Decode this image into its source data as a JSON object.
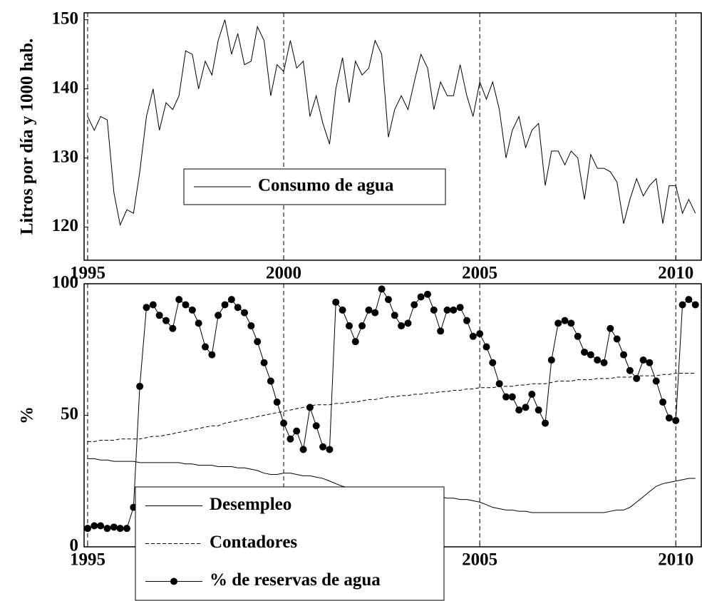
{
  "chart_data": [
    {
      "type": "line",
      "ylabel": "Litros por día y 1000 hab.",
      "legend": "center",
      "xlim": [
        1994.91,
        2010.65
      ],
      "xticks": [
        1995,
        2000,
        2005,
        2010
      ],
      "grid": "x-dashed",
      "ylim": [
        115.2,
        151
      ],
      "yticks": [
        120,
        130,
        140,
        150
      ],
      "x": [
        1995,
        1995.17,
        1995.33,
        1995.5,
        1995.67,
        1995.83,
        1996,
        1996.17,
        1996.33,
        1996.5,
        1996.67,
        1996.83,
        1997,
        1997.17,
        1997.33,
        1997.5,
        1997.67,
        1997.83,
        1998,
        1998.17,
        1998.33,
        1998.5,
        1998.67,
        1998.83,
        1999,
        1999.17,
        1999.33,
        1999.5,
        1999.67,
        1999.83,
        2000,
        2000.17,
        2000.33,
        2000.5,
        2000.67,
        2000.83,
        2001,
        2001.17,
        2001.33,
        2001.5,
        2001.67,
        2001.83,
        2002,
        2002.17,
        2002.33,
        2002.5,
        2002.67,
        2002.83,
        2003,
        2003.17,
        2003.33,
        2003.5,
        2003.67,
        2003.83,
        2004,
        2004.17,
        2004.33,
        2004.5,
        2004.67,
        2004.83,
        2005,
        2005.17,
        2005.33,
        2005.5,
        2005.67,
        2005.83,
        2006,
        2006.17,
        2006.33,
        2006.5,
        2006.67,
        2006.83,
        2007,
        2007.17,
        2007.33,
        2007.5,
        2007.67,
        2007.83,
        2008,
        2008.17,
        2008.33,
        2008.5,
        2008.67,
        2008.83,
        2009,
        2009.17,
        2009.33,
        2009.5,
        2009.67,
        2009.83,
        2010,
        2010.17,
        2010.33,
        2010.5
      ],
      "series": [
        {
          "name": "Consumo de agua",
          "color": "#000000",
          "style": "solid",
          "values": [
            136,
            134,
            136,
            135.5,
            125,
            120.3,
            122.5,
            122,
            128,
            136,
            140,
            134,
            138,
            137,
            139,
            145.5,
            145,
            140,
            144,
            142,
            147,
            150,
            145,
            148,
            143.5,
            144,
            149,
            147,
            139,
            143.5,
            142.5,
            147,
            143,
            144,
            136,
            139,
            135,
            132,
            140,
            144.5,
            138,
            144,
            142,
            143,
            147,
            145,
            133,
            137,
            139,
            137,
            141,
            145,
            143,
            137,
            141,
            139,
            139,
            143.5,
            139,
            136,
            141,
            138.5,
            141,
            137,
            130,
            134,
            136,
            131.5,
            134,
            135,
            126,
            131,
            131,
            129,
            131,
            130,
            124,
            130.5,
            128.5,
            128.5,
            128,
            126.5,
            120.5,
            124,
            127,
            124.5,
            126,
            127,
            120.5,
            126,
            126,
            122,
            124,
            122
          ]
        }
      ]
    },
    {
      "type": "line",
      "ylabel": "%",
      "legend": "lower left",
      "xlim": [
        1994.91,
        2010.65
      ],
      "xticks": [
        1995,
        2000,
        2005,
        2010
      ],
      "grid": "x-dashed",
      "ylim": [
        0,
        100
      ],
      "yticks": [
        0,
        50,
        100
      ],
      "x": [
        1995,
        1995.17,
        1995.33,
        1995.5,
        1995.67,
        1995.83,
        1996,
        1996.17,
        1996.33,
        1996.5,
        1996.67,
        1996.83,
        1997,
        1997.17,
        1997.33,
        1997.5,
        1997.67,
        1997.83,
        1998,
        1998.17,
        1998.33,
        1998.5,
        1998.67,
        1998.83,
        1999,
        1999.17,
        1999.33,
        1999.5,
        1999.67,
        1999.83,
        2000,
        2000.17,
        2000.33,
        2000.5,
        2000.67,
        2000.83,
        2001,
        2001.17,
        2001.33,
        2001.5,
        2001.67,
        2001.83,
        2002,
        2002.17,
        2002.33,
        2002.5,
        2002.67,
        2002.83,
        2003,
        2003.17,
        2003.33,
        2003.5,
        2003.67,
        2003.83,
        2004,
        2004.17,
        2004.33,
        2004.5,
        2004.67,
        2004.83,
        2005,
        2005.17,
        2005.33,
        2005.5,
        2005.67,
        2005.83,
        2006,
        2006.17,
        2006.33,
        2006.5,
        2006.67,
        2006.83,
        2007,
        2007.17,
        2007.33,
        2007.5,
        2007.67,
        2007.83,
        2008,
        2008.17,
        2008.33,
        2008.5,
        2008.67,
        2008.83,
        2009,
        2009.17,
        2009.33,
        2009.5,
        2009.67,
        2009.83,
        2010,
        2010.17,
        2010.33,
        2010.5
      ],
      "series": [
        {
          "name": "Desempleo",
          "color": "#000000",
          "style": "solid",
          "values": [
            33.5,
            33.5,
            33,
            33,
            32.5,
            32.5,
            32.5,
            32.5,
            32,
            32,
            32,
            32,
            32,
            32,
            32,
            31.5,
            31.5,
            31,
            31,
            31,
            30.5,
            30.5,
            30.5,
            30,
            30,
            29.5,
            29,
            28,
            27.5,
            27.5,
            28,
            28,
            27.5,
            27,
            27,
            26.5,
            26,
            25,
            24,
            23,
            22.5,
            22,
            21.5,
            21,
            21,
            20.5,
            20.5,
            20,
            20,
            20,
            20,
            19.5,
            19,
            19,
            19,
            18.5,
            18.5,
            18,
            18,
            17.5,
            17,
            16,
            15,
            14.5,
            14,
            14,
            13.5,
            13.5,
            13,
            13,
            13,
            13,
            13,
            13,
            13,
            13,
            13,
            13,
            13,
            13,
            13.5,
            14,
            14,
            15,
            17,
            19,
            21,
            23,
            24,
            24.5,
            25,
            25.5,
            26,
            26
          ]
        },
        {
          "name": "Contadores",
          "color": "#000000",
          "style": "dashed",
          "values": [
            40,
            40,
            40.5,
            40.5,
            40.5,
            41,
            41,
            41,
            41,
            41.5,
            42,
            42,
            42.5,
            43,
            43.5,
            44,
            44.5,
            45,
            45.5,
            46,
            46,
            47,
            47.5,
            48,
            48.5,
            49,
            49.5,
            50,
            50.5,
            51,
            51.5,
            52,
            52.5,
            53,
            53.5,
            54,
            54,
            54,
            54.5,
            54.5,
            55,
            55,
            55.5,
            56,
            56,
            56.5,
            57,
            57,
            57.5,
            57.5,
            58,
            58,
            58.5,
            58.5,
            59,
            59,
            59.5,
            59.5,
            60,
            60,
            60.5,
            60.5,
            60.5,
            61,
            61,
            61,
            61.5,
            61.5,
            62,
            62,
            62,
            62.5,
            63,
            63,
            63,
            63.5,
            63.5,
            63.5,
            64,
            64,
            64,
            64.5,
            64.5,
            64.5,
            65,
            65,
            65,
            65,
            65.5,
            65.5,
            66,
            66,
            66,
            66
          ]
        },
        {
          "name": "% de reservas de agua",
          "color": "#000000",
          "style": "markers",
          "values": [
            7,
            8,
            8,
            7,
            7.5,
            7,
            7,
            15,
            61,
            91,
            92,
            88,
            86,
            83,
            94,
            92,
            90,
            85,
            76,
            73,
            88,
            92,
            94,
            91,
            89,
            84,
            78,
            70,
            63,
            55,
            47,
            41,
            44,
            37,
            53,
            46,
            38,
            37,
            93,
            90,
            84,
            78,
            84,
            90,
            89,
            98,
            94,
            88,
            84,
            85,
            92,
            95,
            96,
            90,
            82,
            90,
            90,
            91,
            86,
            80,
            81,
            76,
            70,
            62,
            57,
            57,
            52,
            53,
            58,
            52,
            47,
            71,
            85,
            86,
            85,
            80,
            74,
            73,
            71,
            70,
            83,
            79,
            73,
            67,
            64,
            71,
            70,
            63,
            55,
            49,
            48,
            92,
            94,
            92
          ]
        }
      ]
    }
  ]
}
